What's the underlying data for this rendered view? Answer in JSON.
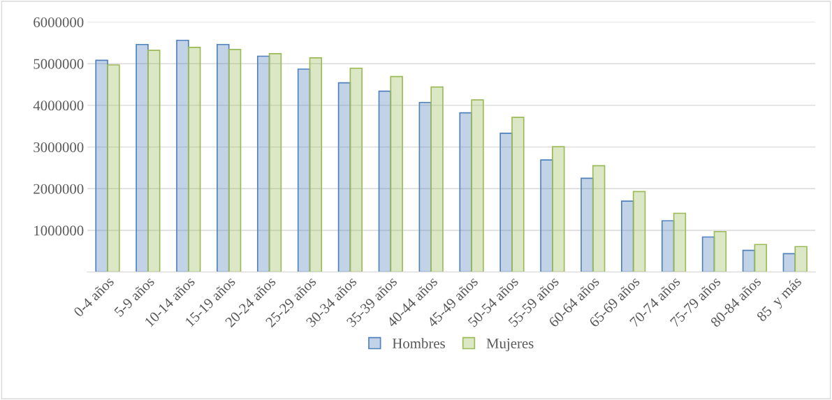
{
  "chart_data": {
    "type": "bar",
    "categories": [
      "0-4 años",
      "5-9 años",
      "10-14 años",
      "15-19 años",
      "20-24 años",
      "25-29 años",
      "30-34 años",
      "35-39 años",
      "40-44 años",
      "45-49 años",
      "50-54 años",
      "55-59 años",
      "60-64 años",
      "65-69 años",
      "70-74 años",
      "75-79 años",
      "80-84 años",
      "85  y más"
    ],
    "series": [
      {
        "name": "Hombres",
        "color": "#4f81bd",
        "values": [
          5080000,
          5460000,
          5560000,
          5460000,
          5180000,
          4870000,
          4540000,
          4340000,
          4070000,
          3820000,
          3330000,
          2690000,
          2250000,
          1700000,
          1230000,
          840000,
          520000,
          440000
        ]
      },
      {
        "name": "Mujeres",
        "color": "#9bbb59",
        "values": [
          4970000,
          5320000,
          5390000,
          5340000,
          5240000,
          5140000,
          4890000,
          4690000,
          4440000,
          4130000,
          3710000,
          3010000,
          2550000,
          1930000,
          1410000,
          970000,
          660000,
          610000
        ]
      }
    ],
    "ylim": [
      0,
      6000000
    ],
    "yticks": [
      {
        "value": 0,
        "label": null
      },
      1000000,
      2000000,
      3000000,
      4000000,
      5000000,
      6000000
    ],
    "grid": "y",
    "legend": "bottom"
  }
}
